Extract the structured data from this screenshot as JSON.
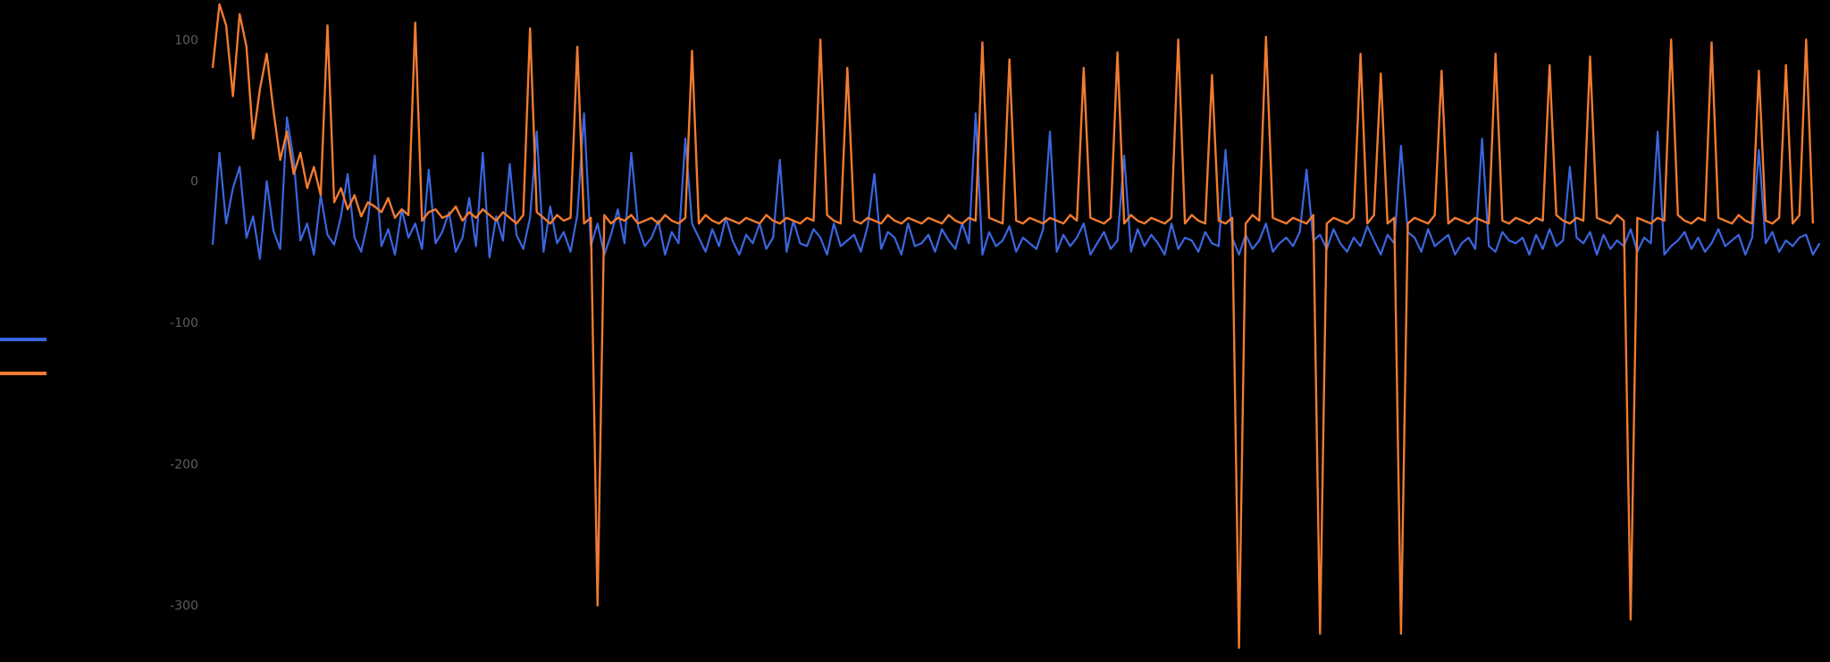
{
  "chart_data": {
    "type": "line",
    "title": "",
    "xlabel": "",
    "ylabel": "",
    "y_ticks": [
      {
        "value": 100,
        "label": "100"
      },
      {
        "value": 0,
        "label": "0"
      },
      {
        "value": -100,
        "label": "-100"
      },
      {
        "value": -200,
        "label": "-200"
      },
      {
        "value": -300,
        "label": "-300"
      }
    ],
    "ylim": [
      -340,
      128
    ],
    "x_count": 240,
    "legend_position": "left",
    "grid": false,
    "series": [
      {
        "name": "",
        "color": "#3b66e0",
        "baseline": -40,
        "values": [
          -45,
          20,
          -30,
          -50,
          10,
          -40,
          -25,
          -55,
          0,
          -35,
          -48,
          -20,
          15,
          -42,
          -30,
          -52,
          -10,
          -38,
          -45,
          -25,
          5,
          -40,
          -50,
          -28,
          -15,
          -46,
          -34,
          -52,
          -20,
          -40,
          -30,
          -48,
          8,
          -44,
          -36,
          -22,
          -50,
          -40,
          -12,
          -46,
          -30,
          -54,
          -25,
          -42,
          12,
          -38,
          -48,
          -26,
          -40,
          -50,
          -18,
          -44,
          -36,
          -50,
          -24,
          -40,
          -46,
          -30,
          -52,
          -38,
          -20,
          -44,
          -50,
          -32,
          -46,
          -40,
          -28,
          -52,
          -36,
          -44,
          -48,
          -30,
          -40,
          -50,
          -34,
          -46,
          -26,
          -42,
          -52,
          -38,
          -44,
          -30,
          -48,
          -40,
          -36,
          -50,
          -28,
          -44,
          -46,
          -34,
          -40,
          -52,
          -30,
          -46,
          -42,
          -38,
          -50,
          -32,
          -44,
          -48,
          -36,
          -40,
          -52,
          -30,
          -46,
          -44,
          -38,
          -50,
          -34,
          -42,
          -48,
          -30,
          -44,
          -40,
          -52,
          -36,
          -46,
          -42,
          -32,
          -50,
          -40,
          -44,
          -48,
          -34,
          -42,
          -50,
          -38,
          -46,
          -40,
          -30,
          -52,
          -44,
          -36,
          -48,
          -42,
          -40,
          -50,
          -34,
          -46,
          -38,
          -44,
          -52,
          -30,
          -48,
          -40,
          -42,
          -50,
          -36,
          -44,
          -46,
          -34,
          -40,
          -52,
          -38,
          -48,
          -42,
          -30,
          -50,
          -44,
          -40,
          -46,
          -36,
          -52,
          -42,
          -38,
          -48,
          -34,
          -44,
          -50,
          -40,
          -46,
          -32,
          -42,
          -52,
          -38,
          -44,
          -48,
          -36,
          -40,
          -50,
          -34,
          -46,
          -42,
          -38,
          -52,
          -44,
          -40,
          -48,
          -30,
          -46,
          -50,
          -36,
          -42,
          -44,
          -40,
          -52,
          -38,
          -48,
          -34,
          -46,
          -42,
          -50,
          -40,
          -44,
          -36,
          -52,
          -38,
          -48,
          -42,
          -46,
          -34,
          -50,
          -40,
          -44,
          -38,
          -52,
          -46,
          -42,
          -36,
          -48,
          -40,
          -50,
          -44,
          -34,
          -46,
          -42,
          -38,
          -52,
          -40,
          -48,
          -44,
          -36,
          -50,
          -42,
          -46,
          -40,
          -38,
          -52,
          -44
        ],
        "spikes": [
          {
            "i": 3,
            "v": -5
          },
          {
            "i": 11,
            "v": 45
          },
          {
            "i": 24,
            "v": 18
          },
          {
            "i": 40,
            "v": 20
          },
          {
            "i": 48,
            "v": 35
          },
          {
            "i": 55,
            "v": 48
          },
          {
            "i": 62,
            "v": 20
          },
          {
            "i": 70,
            "v": 30
          },
          {
            "i": 84,
            "v": 15
          },
          {
            "i": 98,
            "v": 5
          },
          {
            "i": 113,
            "v": 48
          },
          {
            "i": 124,
            "v": 35
          },
          {
            "i": 135,
            "v": 18
          },
          {
            "i": 150,
            "v": 22
          },
          {
            "i": 162,
            "v": 8
          },
          {
            "i": 176,
            "v": 25
          },
          {
            "i": 188,
            "v": 30
          },
          {
            "i": 201,
            "v": 10
          },
          {
            "i": 214,
            "v": 35
          },
          {
            "i": 229,
            "v": 22
          }
        ]
      },
      {
        "name": "",
        "color": "#f07b30",
        "baseline": -30,
        "values": [
          80,
          55,
          110,
          60,
          40,
          95,
          30,
          65,
          20,
          50,
          15,
          35,
          5,
          20,
          -5,
          10,
          -10,
          0,
          -15,
          -5,
          -20,
          -10,
          -25,
          -15,
          -18,
          -22,
          -12,
          -26,
          -20,
          -24,
          -16,
          -28,
          -22,
          -20,
          -26,
          -24,
          -18,
          -28,
          -22,
          -26,
          -20,
          -24,
          -28,
          -22,
          -26,
          -30,
          -24,
          -28,
          -22,
          -26,
          -30,
          -24,
          -28,
          -26,
          -22,
          -30,
          -26,
          -28,
          -24,
          -30,
          -26,
          -28,
          -24,
          -30,
          -28,
          -26,
          -30,
          -24,
          -28,
          -30,
          -26,
          -28,
          -30,
          -24,
          -28,
          -30,
          -26,
          -28,
          -30,
          -26,
          -28,
          -30,
          -24,
          -28,
          -30,
          -26,
          -28,
          -30,
          -26,
          -28,
          -30,
          -24,
          -28,
          -30,
          -26,
          -28,
          -30,
          -26,
          -28,
          -30,
          -24,
          -28,
          -30,
          -26,
          -28,
          -30,
          -26,
          -28,
          -30,
          -24,
          -28,
          -30,
          -26,
          -28,
          -30,
          -26,
          -28,
          -30,
          -24,
          -28,
          -30,
          -26,
          -28,
          -30,
          -26,
          -28,
          -30,
          -24,
          -28,
          -30,
          -26,
          -28,
          -30,
          -26,
          -28,
          -30,
          -24,
          -28,
          -30,
          -26,
          -28,
          -30,
          -26,
          -28,
          -30,
          -24,
          -28,
          -30,
          -26,
          -28,
          -30,
          -26,
          -28,
          -30,
          -24,
          -28,
          -30,
          -26,
          -28,
          -30,
          -26,
          -28,
          -30,
          -24,
          -28,
          -30,
          -26,
          -28,
          -30,
          -26,
          -28,
          -30,
          -24,
          -28,
          -30,
          -26,
          -28,
          -30,
          -26,
          -28,
          -30,
          -24,
          -28,
          -30,
          -26,
          -28,
          -30,
          -26,
          -28,
          -30,
          -24,
          -28,
          -30,
          -26,
          -28,
          -30,
          -26,
          -28,
          -30,
          -24,
          -28,
          -30,
          -26,
          -28,
          -30,
          -26,
          -28,
          -30,
          -24,
          -28,
          -30,
          -26,
          -28,
          -30,
          -26,
          -28,
          -30,
          -24,
          -28,
          -30,
          -26,
          -28,
          -30,
          -26,
          -28,
          -30,
          -24,
          -28,
          -30,
          -26,
          -28,
          -30,
          -26,
          -28,
          -30,
          -24,
          -28,
          -30
        ],
        "spikes": [
          {
            "i": 1,
            "v": 125
          },
          {
            "i": 4,
            "v": 118
          },
          {
            "i": 8,
            "v": 90
          },
          {
            "i": 17,
            "v": 110
          },
          {
            "i": 30,
            "v": 112
          },
          {
            "i": 47,
            "v": 108
          },
          {
            "i": 54,
            "v": 95
          },
          {
            "i": 57,
            "v": -300
          },
          {
            "i": 71,
            "v": 92
          },
          {
            "i": 90,
            "v": 100
          },
          {
            "i": 94,
            "v": 80
          },
          {
            "i": 114,
            "v": 98
          },
          {
            "i": 118,
            "v": 86
          },
          {
            "i": 129,
            "v": 80
          },
          {
            "i": 134,
            "v": 91
          },
          {
            "i": 143,
            "v": 100
          },
          {
            "i": 148,
            "v": 75
          },
          {
            "i": 152,
            "v": -330
          },
          {
            "i": 156,
            "v": 102
          },
          {
            "i": 164,
            "v": -320
          },
          {
            "i": 170,
            "v": 90
          },
          {
            "i": 173,
            "v": 76
          },
          {
            "i": 176,
            "v": -320
          },
          {
            "i": 182,
            "v": 78
          },
          {
            "i": 190,
            "v": 90
          },
          {
            "i": 198,
            "v": 82
          },
          {
            "i": 204,
            "v": 88
          },
          {
            "i": 210,
            "v": -310
          },
          {
            "i": 216,
            "v": 100
          },
          {
            "i": 222,
            "v": 98
          },
          {
            "i": 229,
            "v": 78
          },
          {
            "i": 233,
            "v": 82
          },
          {
            "i": 236,
            "v": 100
          },
          {
            "i": 238,
            "v": 105
          }
        ]
      }
    ]
  }
}
